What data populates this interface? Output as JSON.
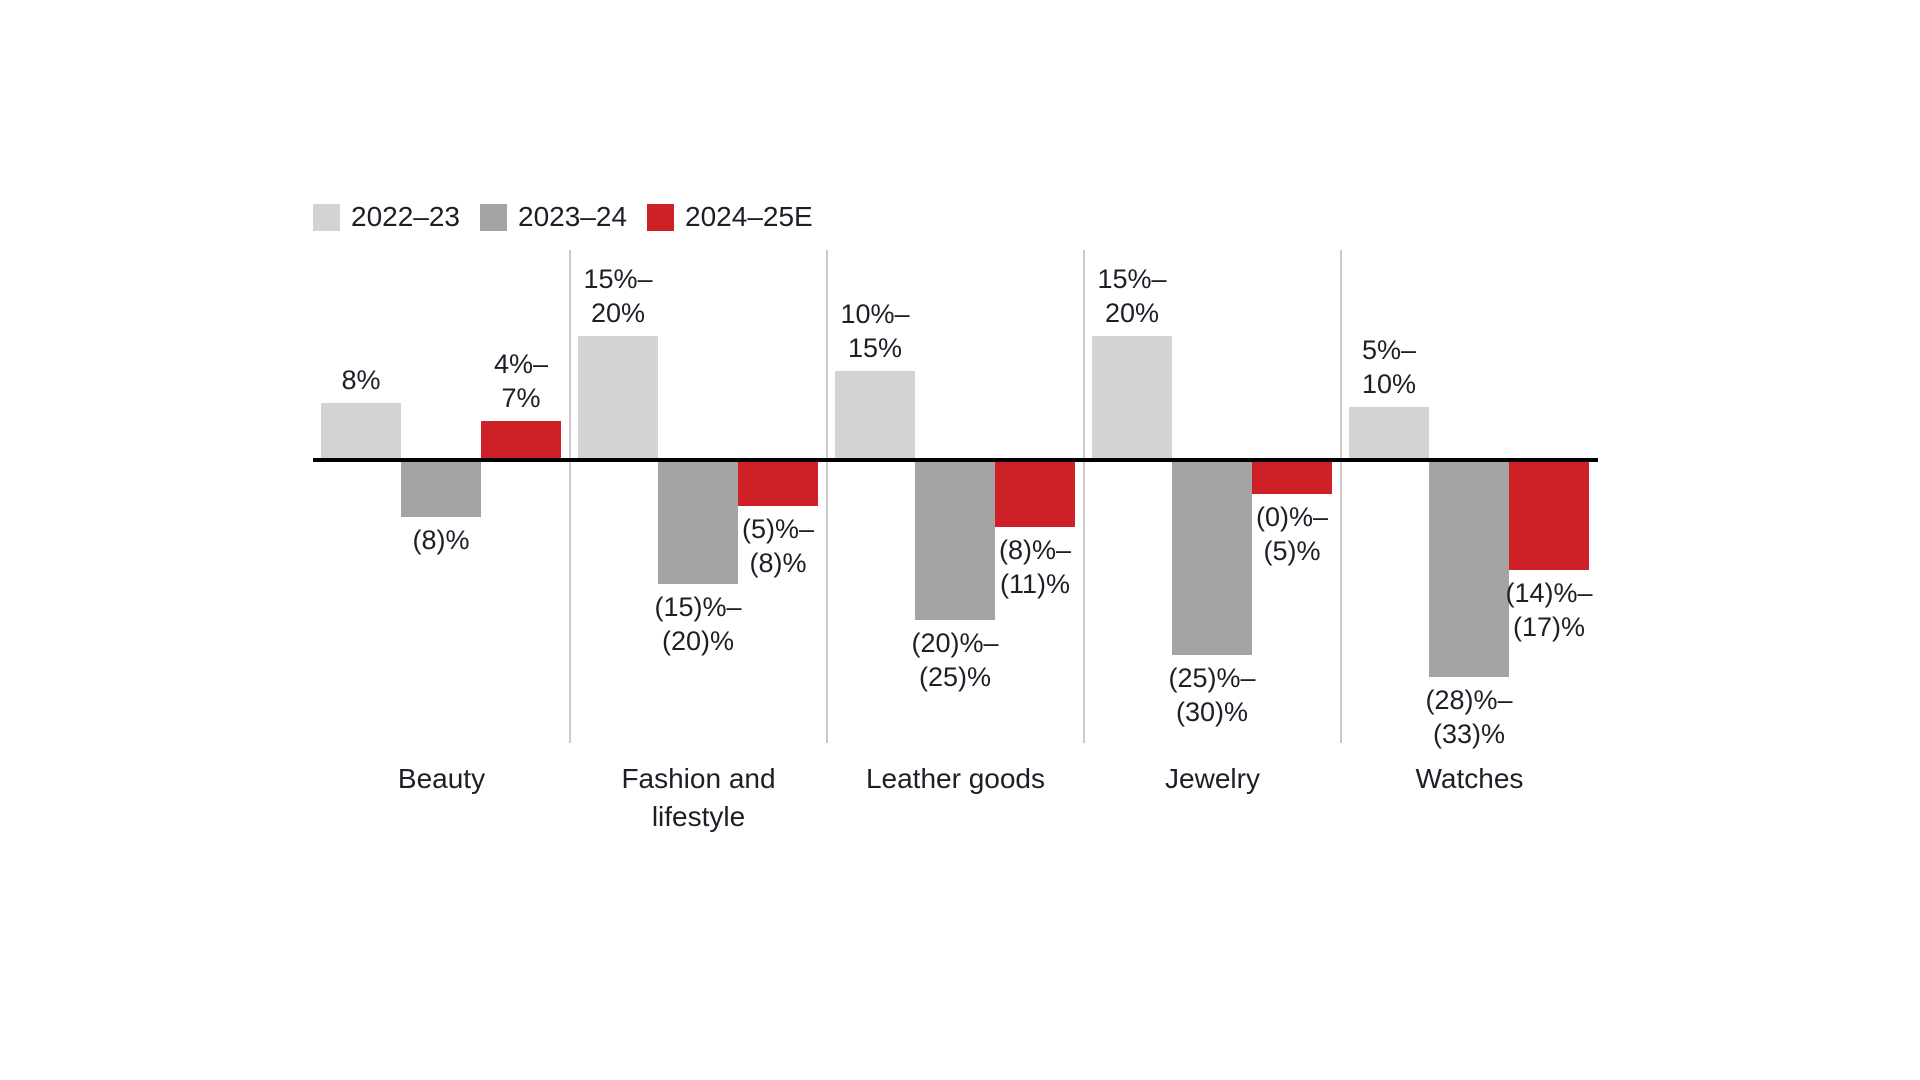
{
  "chart_data": {
    "type": "bar",
    "title": "",
    "xlabel": "",
    "ylabel": "",
    "unit": "%",
    "baseline_value": 0,
    "grid": false,
    "legend_position": "top-left",
    "legend": [
      {
        "name": "2022–23",
        "color": "#d3d3d1"
      },
      {
        "name": "2023–24",
        "color": "#a4a4a4"
      },
      {
        "name": "2024–25E",
        "color": "#cd2127"
      }
    ],
    "colors": {
      "baseline": "#000000",
      "separator": "#cbcbcb",
      "text": "#1e1e27",
      "background": "#ffffff"
    },
    "categories": [
      "Beauty",
      "Fashion and lifestyle",
      "Leather goods",
      "Jewelry",
      "Watches"
    ],
    "groups": [
      {
        "category": "Beauty",
        "bars": [
          {
            "series": "2022–23",
            "label": "8%",
            "value": 8,
            "range": [
              8,
              8
            ]
          },
          {
            "series": "2023–24",
            "label": "(8)%",
            "value": -8,
            "range": [
              -8,
              -8
            ]
          },
          {
            "series": "2024–25E",
            "label": "4%–\n7%",
            "value": 5.5,
            "range": [
              4,
              7
            ]
          }
        ]
      },
      {
        "category": "Fashion and lifestyle",
        "bars": [
          {
            "series": "2022–23",
            "label": "15%–\n20%",
            "value": 17.5,
            "range": [
              15,
              20
            ]
          },
          {
            "series": "2023–24",
            "label": "(15)%–\n(20)%",
            "value": -17.5,
            "range": [
              -20,
              -15
            ]
          },
          {
            "series": "2024–25E",
            "label": "(5)%–\n(8)%",
            "value": -6.5,
            "range": [
              -8,
              -5
            ]
          }
        ]
      },
      {
        "category": "Leather goods",
        "bars": [
          {
            "series": "2022–23",
            "label": "10%–\n15%",
            "value": 12.5,
            "range": [
              10,
              15
            ]
          },
          {
            "series": "2023–24",
            "label": "(20)%–\n(25)%",
            "value": -22.5,
            "range": [
              -25,
              -20
            ]
          },
          {
            "series": "2024–25E",
            "label": "(8)%–\n(11)%",
            "value": -9.5,
            "range": [
              -11,
              -8
            ]
          }
        ]
      },
      {
        "category": "Jewelry",
        "bars": [
          {
            "series": "2022–23",
            "label": "15%–\n20%",
            "value": 17.5,
            "range": [
              15,
              20
            ]
          },
          {
            "series": "2023–24",
            "label": "(25)%–\n(30)%",
            "value": -27.5,
            "range": [
              -30,
              -25
            ]
          },
          {
            "series": "2024–25E",
            "label": "(0)%–\n(5)%",
            "value": -2.5,
            "range": [
              -5,
              0
            ]
          }
        ]
      },
      {
        "category": "Watches",
        "bars": [
          {
            "series": "2022–23",
            "label": "5%–\n10%",
            "value": 7.5,
            "range": [
              5,
              10
            ]
          },
          {
            "series": "2023–24",
            "label": "(28)%–\n(33)%",
            "value": -30.5,
            "range": [
              -33,
              -28
            ]
          },
          {
            "series": "2024–25E",
            "label": "(14)%–\n(17)%",
            "value": -15.5,
            "range": [
              -17,
              -14
            ]
          }
        ]
      }
    ]
  }
}
